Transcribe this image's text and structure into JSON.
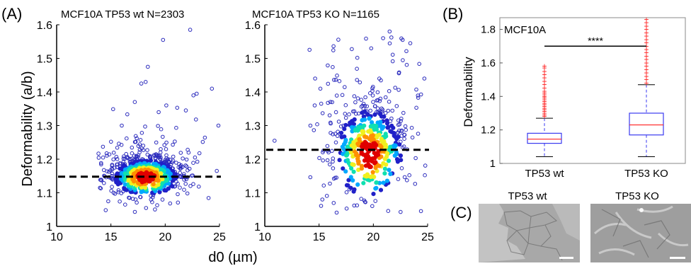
{
  "panels": {
    "A": {
      "letter": "(A)",
      "shared_xlabel": "d0 (µm)",
      "shared_ylabel": "Deformability (a/b)"
    },
    "B": {
      "letter": "(B)"
    },
    "C": {
      "letter": "(C)",
      "images": [
        {
          "title": "TP53 wt"
        },
        {
          "title": "TP53 KO"
        }
      ]
    }
  },
  "colors": {
    "scatter_outline": "#2b2bbd",
    "density_scale": [
      "#2020c8",
      "#00a8ff",
      "#10e0b0",
      "#f0f020",
      "#ff9000",
      "#e00000"
    ],
    "box_outline": "#3a3af0",
    "median": "#ff2020",
    "outlier": "#ff2020",
    "threshold_line": "#000000"
  },
  "chart_data": [
    {
      "type": "scatter",
      "title": "MCF10A  TP53 wt   N=2303",
      "xlim": [
        10,
        25
      ],
      "ylim": [
        1.0,
        1.6
      ],
      "xticks": [
        10,
        15,
        20,
        25
      ],
      "yticks": [
        1,
        1.1,
        1.2,
        1.3,
        1.4,
        1.5,
        1.6
      ],
      "threshold_y": 1.148,
      "n": 2303,
      "density_center": [
        18.2,
        1.145
      ],
      "spread": [
        1.7,
        0.035
      ],
      "points_sample": [
        [
          19.8,
          1.555
        ],
        [
          22.3,
          1.585
        ],
        [
          18.4,
          1.475
        ],
        [
          17.8,
          1.425
        ],
        [
          18.2,
          1.43
        ],
        [
          24.3,
          1.41
        ],
        [
          22.6,
          1.39
        ],
        [
          22.9,
          1.395
        ],
        [
          20.1,
          1.36
        ],
        [
          19.4,
          1.34
        ],
        [
          21.9,
          1.345
        ],
        [
          17.2,
          1.37
        ],
        [
          16.0,
          1.3
        ],
        [
          24.9,
          1.3
        ]
      ]
    },
    {
      "type": "scatter",
      "title": "MCF10A  TP53 KO   N=1165",
      "xlim": [
        10,
        25
      ],
      "ylim": [
        1.0,
        1.6
      ],
      "xticks": [
        10,
        15,
        20,
        25
      ],
      "yticks": [
        1,
        1.1,
        1.2,
        1.3,
        1.4,
        1.5,
        1.6
      ],
      "threshold_y": 1.228,
      "n": 1165,
      "density_center": [
        19.6,
        1.215
      ],
      "spread": [
        1.8,
        0.085
      ],
      "points_sample": [
        [
          21.5,
          1.58
        ],
        [
          20.9,
          1.56
        ],
        [
          22.7,
          1.555
        ],
        [
          19.8,
          1.53
        ],
        [
          23.4,
          1.545
        ],
        [
          10.9,
          1.255
        ],
        [
          14.6,
          1.36
        ],
        [
          15.2,
          1.365
        ],
        [
          14.2,
          1.3
        ],
        [
          24.7,
          1.44
        ],
        [
          16.6,
          1.145
        ],
        [
          15.3,
          1.08
        ]
      ]
    },
    {
      "type": "box",
      "title": "MCF10A",
      "categories": [
        "TP53 wt",
        "TP53 KO"
      ],
      "ylabel": "Deformability",
      "ylim": [
        1.0,
        1.87
      ],
      "yticks": [
        1,
        1.2,
        1.4,
        1.6,
        1.8
      ],
      "boxes": [
        {
          "whisker_low": 1.04,
          "q1": 1.12,
          "median": 1.145,
          "q3": 1.18,
          "whisker_high": 1.27,
          "outliers": [
            1.28,
            1.29,
            1.3,
            1.31,
            1.32,
            1.33,
            1.34,
            1.35,
            1.36,
            1.37,
            1.38,
            1.39,
            1.4,
            1.41,
            1.42,
            1.43,
            1.45,
            1.47,
            1.49,
            1.51,
            1.53,
            1.55,
            1.57,
            1.58
          ]
        },
        {
          "whisker_low": 1.04,
          "q1": 1.17,
          "median": 1.23,
          "q3": 1.3,
          "whisker_high": 1.47,
          "outliers": [
            1.48,
            1.5,
            1.52,
            1.54,
            1.56,
            1.58,
            1.6,
            1.62,
            1.64,
            1.66,
            1.68,
            1.7,
            1.72,
            1.74,
            1.76,
            1.78,
            1.8,
            1.82,
            1.84,
            1.86
          ]
        }
      ],
      "significance": {
        "label": "****",
        "y": 1.7
      }
    }
  ]
}
